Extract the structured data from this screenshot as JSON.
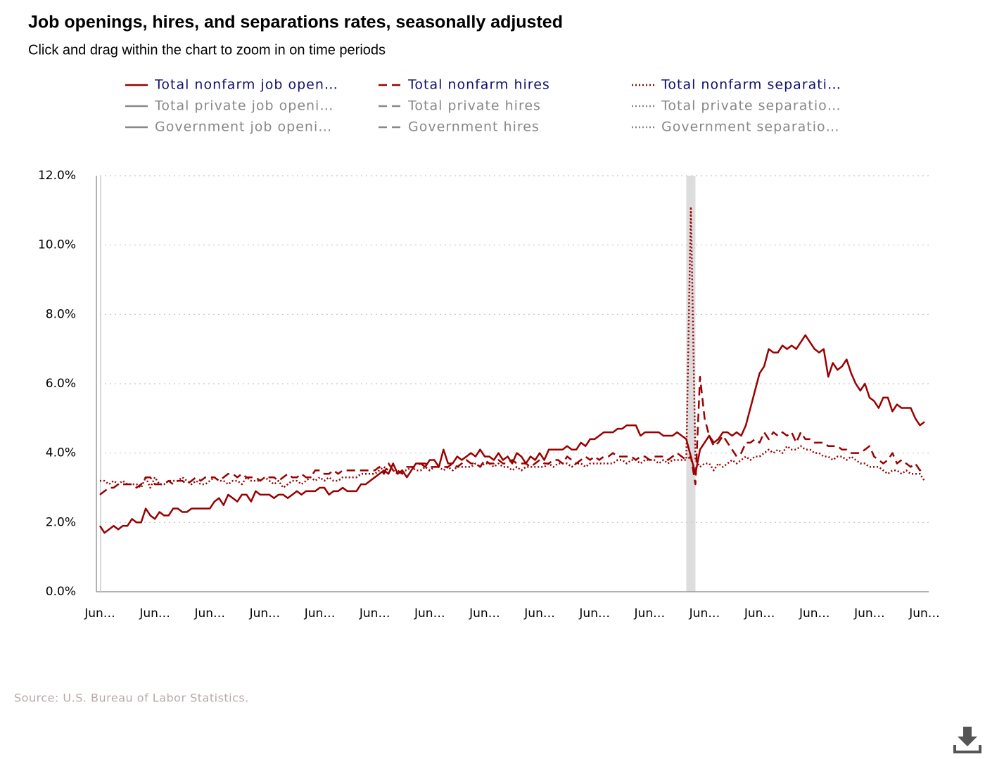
{
  "chart_data": {
    "type": "line",
    "title": "Job openings, hires, and separations rates, seasonally adjusted",
    "subtitle": "Click and drag within the chart to zoom in on time periods",
    "source": "Source: U.S. Bureau of Labor Statistics.",
    "categories": [
      "Jun…",
      null,
      null,
      null,
      null,
      null,
      null,
      null,
      null,
      null,
      null,
      null,
      "Jun…",
      null,
      null,
      null,
      null,
      null,
      null,
      null,
      null,
      null,
      null,
      null,
      "Jun…",
      null,
      null,
      null,
      null,
      null,
      null,
      null,
      null,
      null,
      null,
      null,
      "Jun…",
      null,
      null,
      null,
      null,
      null,
      null,
      null,
      null,
      null,
      null,
      null,
      "Jun…",
      null,
      null,
      null,
      null,
      null,
      null,
      null,
      null,
      null,
      null,
      null,
      "Jun…",
      null,
      null,
      null,
      null,
      null,
      null,
      null,
      null,
      null,
      null,
      null,
      "Jun…",
      null,
      null,
      null,
      null,
      null,
      null,
      null,
      null,
      null,
      null,
      null,
      "Jun…",
      null,
      null,
      null,
      null,
      null,
      null,
      null,
      null,
      null,
      null,
      null,
      "Jun…",
      null,
      null,
      null,
      null,
      null,
      null,
      null,
      null,
      null,
      null,
      null,
      "Jun…",
      null,
      null,
      null,
      null,
      null,
      null,
      null,
      null,
      null,
      null,
      null,
      "Jun…",
      null,
      null,
      null,
      null,
      null,
      null,
      null,
      null,
      null,
      null,
      null,
      "Jun…",
      null,
      null,
      null,
      null,
      null,
      null,
      null,
      null,
      null,
      null,
      null,
      "Jun…",
      null,
      null,
      null,
      null,
      null,
      null,
      null,
      null,
      null,
      null,
      null,
      "Jun…",
      null,
      null,
      null,
      null,
      null,
      null,
      null,
      null,
      null,
      null,
      null,
      "Jun…",
      null,
      null,
      null,
      null,
      null,
      null,
      null,
      null,
      null,
      null,
      null,
      "Jun…"
    ],
    "shaded_range": [
      128,
      130
    ],
    "shaded_color": "#dddddd",
    "ylim": [
      0,
      12
    ],
    "yticks": [
      {
        "value": 0,
        "label": "0.0%"
      },
      {
        "value": 2,
        "label": "2.0%"
      },
      {
        "value": 4,
        "label": "4.0%"
      },
      {
        "value": 6,
        "label": "6.0%"
      },
      {
        "value": 8,
        "label": "8.0%"
      },
      {
        "value": 10,
        "label": "10.0%"
      },
      {
        "value": 12,
        "label": "12.0%"
      }
    ],
    "grid": true,
    "legend": "top",
    "series": [
      {
        "name": "Total nonfarm job open…",
        "color": "#990000",
        "dash": "solid",
        "visible": true,
        "values": [
          1.9,
          1.7,
          1.8,
          1.9,
          1.8,
          1.9,
          1.9,
          2.1,
          2.0,
          2.0,
          2.4,
          2.2,
          2.1,
          2.3,
          2.2,
          2.2,
          2.4,
          2.4,
          2.3,
          2.3,
          2.4,
          2.4,
          2.4,
          2.4,
          2.4,
          2.6,
          2.7,
          2.5,
          2.8,
          2.7,
          2.6,
          2.8,
          2.8,
          2.6,
          2.9,
          2.8,
          2.8,
          2.8,
          2.7,
          2.8,
          2.8,
          2.7,
          2.8,
          2.9,
          2.8,
          2.9,
          2.9,
          2.9,
          3.0,
          3.0,
          2.8,
          2.9,
          2.9,
          3.0,
          2.9,
          2.9,
          2.9,
          3.1,
          3.1,
          3.2,
          3.3,
          3.4,
          3.5,
          3.4,
          3.7,
          3.4,
          3.5,
          3.3,
          3.5,
          3.7,
          3.7,
          3.6,
          3.8,
          3.8,
          3.6,
          4.1,
          3.7,
          3.7,
          3.9,
          3.8,
          3.9,
          4.0,
          3.9,
          4.1,
          3.9,
          3.9,
          3.8,
          4.0,
          3.8,
          3.9,
          3.7,
          4.0,
          3.9,
          3.7,
          3.9,
          3.8,
          4.0,
          3.8,
          4.1,
          4.1,
          4.1,
          4.1,
          4.2,
          4.1,
          4.1,
          4.3,
          4.2,
          4.4,
          4.4,
          4.5,
          4.6,
          4.6,
          4.6,
          4.7,
          4.7,
          4.8,
          4.8,
          4.8,
          4.5,
          4.6,
          4.6,
          4.6,
          4.6,
          4.5,
          4.5,
          4.5,
          4.6,
          4.5,
          4.4,
          3.9,
          3.4,
          4.1,
          4.3,
          4.5,
          4.3,
          4.4,
          4.6,
          4.6,
          4.5,
          4.6,
          4.5,
          4.8,
          5.3,
          5.8,
          6.3,
          6.5,
          7.0,
          6.9,
          6.9,
          7.1,
          7.0,
          7.1,
          7.0,
          7.2,
          7.4,
          7.2,
          7.0,
          6.9,
          7.0,
          6.2,
          6.6,
          6.4,
          6.5,
          6.7,
          6.3,
          6.0,
          5.8,
          6.0,
          5.6,
          5.5,
          5.3,
          5.6,
          5.6,
          5.2,
          5.4,
          5.3,
          5.3,
          5.3,
          5.0,
          4.8,
          4.9
        ]
      },
      {
        "name": "Total nonfarm hires",
        "color": "#990000",
        "dash": "dashed",
        "visible": true,
        "values": [
          2.8,
          2.9,
          3.0,
          3.0,
          3.1,
          3.1,
          3.1,
          3.1,
          3.0,
          3.1,
          3.3,
          3.3,
          3.1,
          3.1,
          3.1,
          3.2,
          3.1,
          3.2,
          3.2,
          3.1,
          3.2,
          3.3,
          3.2,
          3.3,
          3.3,
          3.3,
          3.2,
          3.3,
          3.4,
          3.4,
          3.3,
          3.4,
          3.3,
          3.3,
          3.3,
          3.2,
          3.3,
          3.3,
          3.3,
          3.2,
          3.3,
          3.4,
          3.3,
          3.3,
          3.4,
          3.3,
          3.3,
          3.5,
          3.5,
          3.4,
          3.4,
          3.5,
          3.4,
          3.5,
          3.5,
          3.5,
          3.5,
          3.5,
          3.5,
          3.5,
          3.5,
          3.6,
          3.4,
          3.7,
          3.5,
          3.5,
          3.4,
          3.6,
          3.6,
          3.6,
          3.7,
          3.7,
          3.6,
          3.6,
          3.6,
          3.6,
          3.6,
          3.7,
          3.6,
          3.7,
          3.8,
          3.7,
          3.7,
          3.6,
          3.8,
          3.7,
          3.7,
          3.8,
          3.7,
          3.7,
          3.8,
          3.7,
          3.7,
          3.7,
          3.6,
          3.7,
          3.8,
          3.7,
          3.7,
          3.8,
          3.8,
          3.7,
          3.9,
          3.8,
          3.7,
          3.8,
          3.9,
          3.8,
          3.9,
          3.8,
          3.9,
          3.9,
          4.0,
          3.9,
          3.9,
          3.9,
          3.9,
          3.8,
          3.9,
          3.9,
          3.8,
          3.9,
          3.9,
          3.9,
          3.8,
          3.9,
          4.0,
          3.9,
          3.8,
          3.9,
          3.1,
          6.2,
          5.0,
          4.5,
          4.2,
          4.3,
          4.5,
          4.3,
          4.1,
          3.9,
          4.0,
          4.3,
          4.3,
          4.4,
          4.3,
          4.6,
          4.4,
          4.6,
          4.5,
          4.6,
          4.5,
          4.6,
          4.3,
          4.6,
          4.4,
          4.4,
          4.3,
          4.3,
          4.3,
          4.2,
          4.2,
          4.2,
          4.1,
          4.1,
          4.0,
          4.0,
          4.0,
          4.1,
          4.2,
          3.9,
          3.8,
          3.7,
          3.8,
          4.0,
          3.7,
          3.8,
          3.7,
          3.6,
          3.7,
          3.5,
          3.6
        ]
      },
      {
        "name": "Total nonfarm separati…",
        "color": "#990000",
        "dash": "dotted",
        "visible": true,
        "values": [
          3.2,
          3.2,
          3.1,
          3.2,
          3.1,
          3.2,
          3.1,
          3.1,
          3.1,
          3.0,
          3.3,
          3.0,
          3.3,
          3.1,
          3.1,
          3.2,
          3.2,
          3.2,
          3.3,
          3.2,
          3.1,
          3.2,
          3.1,
          3.1,
          3.2,
          3.3,
          3.2,
          3.2,
          3.1,
          3.2,
          3.2,
          3.1,
          3.3,
          3.2,
          3.2,
          3.2,
          3.3,
          3.2,
          3.1,
          3.2,
          3.0,
          3.1,
          3.2,
          3.2,
          3.1,
          3.2,
          3.3,
          3.2,
          3.3,
          3.2,
          3.3,
          3.2,
          3.2,
          3.3,
          3.3,
          3.3,
          3.3,
          3.4,
          3.4,
          3.4,
          3.4,
          3.5,
          3.6,
          3.5,
          3.5,
          3.4,
          3.5,
          3.5,
          3.6,
          3.5,
          3.5,
          3.6,
          3.5,
          3.6,
          3.6,
          3.5,
          3.6,
          3.5,
          3.6,
          3.6,
          3.6,
          3.6,
          3.7,
          3.6,
          3.7,
          3.7,
          3.6,
          3.7,
          3.6,
          3.6,
          3.5,
          3.6,
          3.5,
          3.6,
          3.6,
          3.6,
          3.6,
          3.6,
          3.7,
          3.6,
          3.7,
          3.7,
          3.7,
          3.6,
          3.7,
          3.7,
          3.6,
          3.7,
          3.7,
          3.7,
          3.7,
          3.7,
          3.7,
          3.8,
          3.8,
          3.7,
          3.8,
          3.8,
          3.7,
          3.8,
          3.8,
          3.8,
          3.7,
          3.8,
          3.7,
          3.8,
          3.8,
          3.8,
          3.8,
          11.1,
          3.8,
          3.6,
          3.7,
          3.7,
          3.5,
          3.7,
          3.6,
          3.7,
          3.8,
          3.7,
          3.8,
          3.9,
          3.8,
          3.9,
          3.9,
          4.0,
          4.1,
          4.0,
          4.1,
          4.0,
          4.2,
          4.1,
          4.1,
          4.2,
          4.1,
          4.1,
          4.0,
          4.0,
          3.9,
          3.9,
          3.8,
          3.9,
          3.9,
          3.8,
          3.9,
          3.8,
          3.7,
          3.7,
          3.6,
          3.6,
          3.6,
          3.5,
          3.4,
          3.5,
          3.5,
          3.4,
          3.5,
          3.4,
          3.4,
          3.4,
          3.2
        ]
      },
      {
        "name": "Total private job openi…",
        "color": "#888888",
        "dash": "solid",
        "visible": false
      },
      {
        "name": "Total private hires",
        "color": "#888888",
        "dash": "dashed",
        "visible": false
      },
      {
        "name": "Total private separatio…",
        "color": "#888888",
        "dash": "dotted",
        "visible": false
      },
      {
        "name": "Government job openi…",
        "color": "#888888",
        "dash": "solid",
        "visible": false
      },
      {
        "name": "Government hires",
        "color": "#888888",
        "dash": "dashed",
        "visible": false
      },
      {
        "name": "Government separatio…",
        "color": "#888888",
        "dash": "dotted",
        "visible": false
      }
    ]
  }
}
